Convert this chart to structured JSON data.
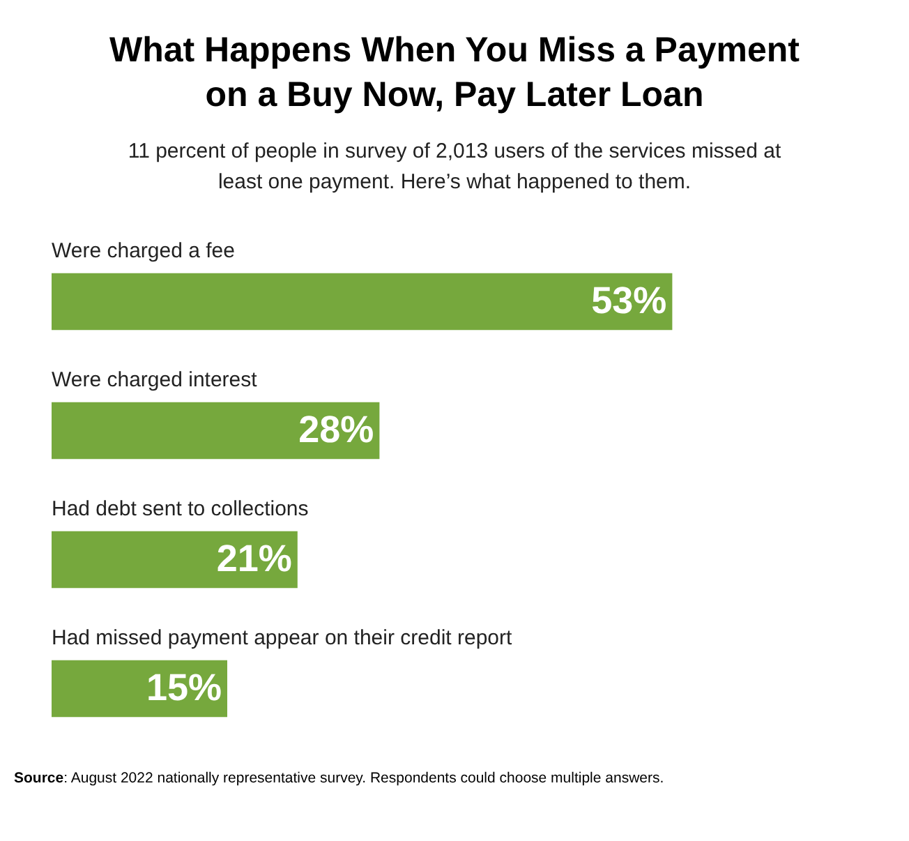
{
  "chart_data": {
    "type": "bar",
    "orientation": "horizontal",
    "title": "What Happens When You Miss a Payment on a Buy Now, Pay Later Loan",
    "subtitle": "11 percent of people in survey of 2,013 users of the services missed at least one payment. Here’s what happened to them.",
    "categories": [
      "Were charged a fee",
      "Were charged interest",
      "Had debt sent to collections",
      "Had missed payment appear on their credit report"
    ],
    "values": [
      53,
      28,
      21,
      15
    ],
    "value_labels": [
      "53%",
      "28%",
      "21%",
      "15%"
    ],
    "color": "#76a83d",
    "annotations": [
      "Source: August 2022 nationally representative survey. Respondents could choose multiple answers."
    ]
  }
}
